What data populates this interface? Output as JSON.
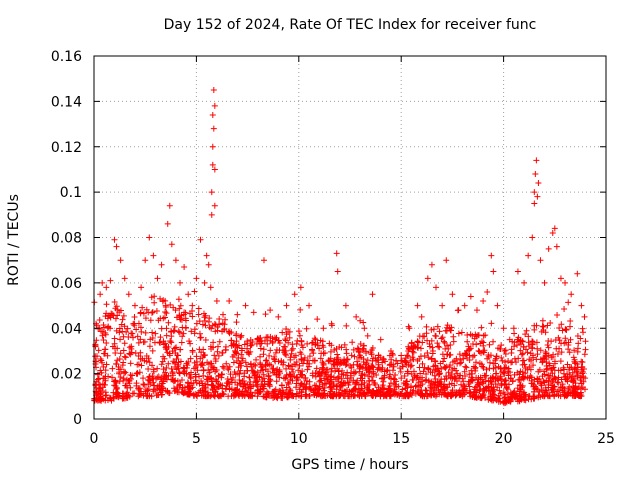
{
  "chart_data": {
    "type": "scatter",
    "title": "Day 152 of 2024, Rate Of TEC Index for receiver func",
    "xlabel": "GPS time / hours",
    "ylabel": "ROTI / TECUs",
    "xlim": [
      0,
      25
    ],
    "ylim": [
      0,
      0.16
    ],
    "x_ticks": [
      0,
      5,
      10,
      15,
      20,
      25
    ],
    "y_ticks": [
      0,
      0.02,
      0.04,
      0.06,
      0.08,
      0.1,
      0.12,
      0.14,
      0.16
    ],
    "x_tick_labels": [
      "0",
      "5",
      "10",
      "15",
      "20",
      "25"
    ],
    "y_tick_labels": [
      "0",
      "0.02",
      "0.04",
      "0.06",
      "0.08",
      "0.1",
      "0.12",
      "0.14",
      "0.16"
    ],
    "grid": true,
    "marker": "+",
    "color": "#ff0000",
    "series": [
      {
        "name": "ROTI",
        "points": [
          [
            0.1,
            0.042
          ],
          [
            0.3,
            0.055
          ],
          [
            0.4,
            0.06
          ],
          [
            0.6,
            0.058
          ],
          [
            0.8,
            0.061
          ],
          [
            1.0,
            0.079
          ],
          [
            1.1,
            0.076
          ],
          [
            1.3,
            0.07
          ],
          [
            1.5,
            0.062
          ],
          [
            1.7,
            0.055
          ],
          [
            2.0,
            0.05
          ],
          [
            2.3,
            0.058
          ],
          [
            2.5,
            0.07
          ],
          [
            2.7,
            0.08
          ],
          [
            2.9,
            0.072
          ],
          [
            3.1,
            0.062
          ],
          [
            3.3,
            0.068
          ],
          [
            3.5,
            0.05
          ],
          [
            3.6,
            0.086
          ],
          [
            3.7,
            0.094
          ],
          [
            3.8,
            0.077
          ],
          [
            4.0,
            0.07
          ],
          [
            4.2,
            0.06
          ],
          [
            4.4,
            0.067
          ],
          [
            4.6,
            0.055
          ],
          [
            4.8,
            0.05
          ],
          [
            5.0,
            0.062
          ],
          [
            5.2,
            0.079
          ],
          [
            5.4,
            0.06
          ],
          [
            5.5,
            0.072
          ],
          [
            5.6,
            0.068
          ],
          [
            5.7,
            0.058
          ],
          [
            5.75,
            0.09
          ],
          [
            5.75,
            0.1
          ],
          [
            5.8,
            0.112
          ],
          [
            5.8,
            0.12
          ],
          [
            5.8,
            0.134
          ],
          [
            5.85,
            0.145
          ],
          [
            5.9,
            0.138
          ],
          [
            5.85,
            0.128
          ],
          [
            5.9,
            0.094
          ],
          [
            5.9,
            0.11
          ],
          [
            6.0,
            0.052
          ],
          [
            6.3,
            0.046
          ],
          [
            6.6,
            0.052
          ],
          [
            7.0,
            0.046
          ],
          [
            7.4,
            0.05
          ],
          [
            7.8,
            0.047
          ],
          [
            8.3,
            0.07
          ],
          [
            8.6,
            0.048
          ],
          [
            9.0,
            0.045
          ],
          [
            9.4,
            0.05
          ],
          [
            9.8,
            0.055
          ],
          [
            10.1,
            0.058
          ],
          [
            10.5,
            0.05
          ],
          [
            10.9,
            0.044
          ],
          [
            11.2,
            0.04
          ],
          [
            11.6,
            0.042
          ],
          [
            11.85,
            0.073
          ],
          [
            11.9,
            0.065
          ],
          [
            12.3,
            0.05
          ],
          [
            12.8,
            0.045
          ],
          [
            13.2,
            0.04
          ],
          [
            13.6,
            0.055
          ],
          [
            14.0,
            0.035
          ],
          [
            14.5,
            0.03
          ],
          [
            15.0,
            0.028
          ],
          [
            15.4,
            0.04
          ],
          [
            15.8,
            0.05
          ],
          [
            16.0,
            0.045
          ],
          [
            16.3,
            0.062
          ],
          [
            16.5,
            0.068
          ],
          [
            16.7,
            0.058
          ],
          [
            17.0,
            0.05
          ],
          [
            17.2,
            0.07
          ],
          [
            17.5,
            0.055
          ],
          [
            17.8,
            0.048
          ],
          [
            18.1,
            0.05
          ],
          [
            18.4,
            0.054
          ],
          [
            18.7,
            0.048
          ],
          [
            19.0,
            0.052
          ],
          [
            19.2,
            0.056
          ],
          [
            19.4,
            0.072
          ],
          [
            19.5,
            0.065
          ],
          [
            19.7,
            0.05
          ],
          [
            20.0,
            0.04
          ],
          [
            20.3,
            0.035
          ],
          [
            20.5,
            0.04
          ],
          [
            20.7,
            0.065
          ],
          [
            21.0,
            0.06
          ],
          [
            21.2,
            0.072
          ],
          [
            21.4,
            0.08
          ],
          [
            21.5,
            0.095
          ],
          [
            21.5,
            0.1
          ],
          [
            21.55,
            0.108
          ],
          [
            21.6,
            0.114
          ],
          [
            21.65,
            0.098
          ],
          [
            21.7,
            0.104
          ],
          [
            21.8,
            0.07
          ],
          [
            22.0,
            0.06
          ],
          [
            22.2,
            0.075
          ],
          [
            22.4,
            0.082
          ],
          [
            22.5,
            0.084
          ],
          [
            22.6,
            0.076
          ],
          [
            22.8,
            0.062
          ],
          [
            23.0,
            0.06
          ],
          [
            23.3,
            0.055
          ],
          [
            23.6,
            0.064
          ],
          [
            23.8,
            0.05
          ],
          [
            23.95,
            0.045
          ]
        ],
        "band_envelope": {
          "x": [
            0,
            1,
            2,
            3,
            4,
            5,
            6,
            7,
            8,
            9,
            10,
            11,
            12,
            13,
            14,
            15,
            16,
            17,
            18,
            19,
            20,
            21,
            22,
            23,
            24
          ],
          "upper": [
            0.042,
            0.05,
            0.048,
            0.055,
            0.05,
            0.05,
            0.045,
            0.038,
            0.036,
            0.038,
            0.04,
            0.035,
            0.034,
            0.034,
            0.03,
            0.03,
            0.038,
            0.042,
            0.04,
            0.04,
            0.03,
            0.04,
            0.045,
            0.042,
            0.04
          ],
          "lower": [
            0.008,
            0.008,
            0.01,
            0.01,
            0.012,
            0.01,
            0.01,
            0.01,
            0.01,
            0.009,
            0.01,
            0.01,
            0.01,
            0.01,
            0.01,
            0.01,
            0.01,
            0.01,
            0.01,
            0.009,
            0.007,
            0.008,
            0.01,
            0.01,
            0.01
          ]
        }
      }
    ]
  }
}
